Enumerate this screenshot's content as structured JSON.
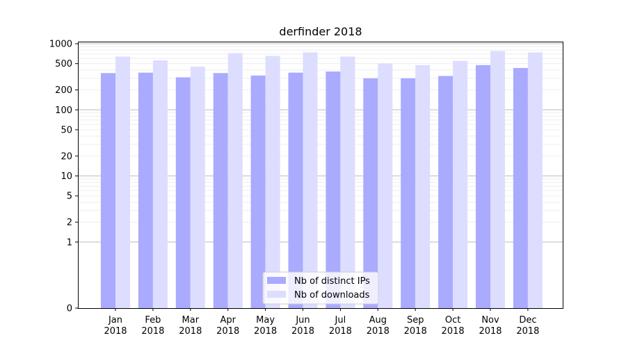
{
  "chart_data": {
    "type": "bar",
    "title": "derfinder 2018",
    "xlabel": "",
    "ylabel": "",
    "yscale": "symlog",
    "ylim": [
      0,
      1000
    ],
    "yticks": [
      0,
      1,
      2,
      5,
      10,
      20,
      50,
      100,
      200,
      500,
      1000
    ],
    "ytick_labels": [
      "0",
      "1",
      "2",
      "5",
      "10",
      "20",
      "50",
      "100",
      "200",
      "500",
      "1000"
    ],
    "categories": [
      "Jan\n2018",
      "Feb\n2018",
      "Mar\n2018",
      "Apr\n2018",
      "May\n2018",
      "Jun\n2018",
      "Jul\n2018",
      "Aug\n2018",
      "Sep\n2018",
      "Oct\n2018",
      "Nov\n2018",
      "Dec\n2018"
    ],
    "category_lines": [
      [
        "Jan",
        "2018"
      ],
      [
        "Feb",
        "2018"
      ],
      [
        "Mar",
        "2018"
      ],
      [
        "Apr",
        "2018"
      ],
      [
        "May",
        "2018"
      ],
      [
        "Jun",
        "2018"
      ],
      [
        "Jul",
        "2018"
      ],
      [
        "Aug",
        "2018"
      ],
      [
        "Sep",
        "2018"
      ],
      [
        "Oct",
        "2018"
      ],
      [
        "Nov",
        "2018"
      ],
      [
        "Dec",
        "2018"
      ]
    ],
    "series": [
      {
        "name": "Nb of distinct IPs",
        "color": "#aaaaff",
        "values": [
          360,
          365,
          310,
          360,
          330,
          365,
          380,
          300,
          300,
          325,
          475,
          430
        ]
      },
      {
        "name": "Nb of downloads",
        "color": "#ddddff",
        "values": [
          640,
          560,
          450,
          720,
          655,
          740,
          640,
          505,
          475,
          550,
          775,
          740
        ]
      }
    ],
    "legend_position": "lower-center"
  }
}
